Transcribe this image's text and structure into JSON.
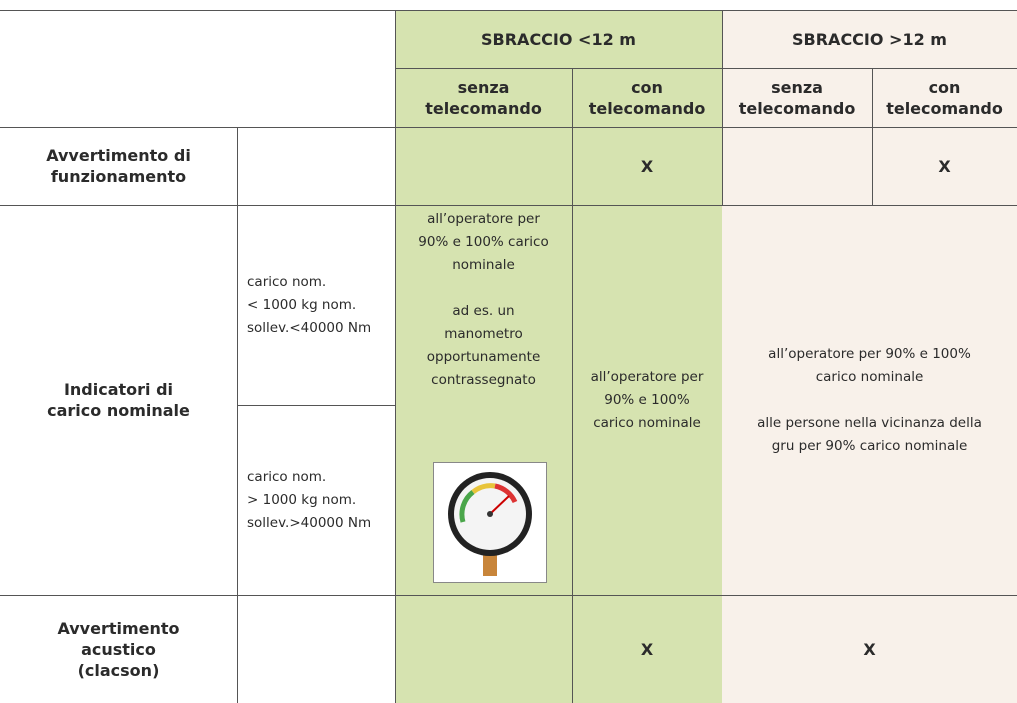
{
  "header": {
    "groups": [
      "SBRACCIO <12 m",
      "SBRACCIO >12 m"
    ],
    "subheaders": [
      "senza\ntelecomando",
      "con\ntelecomando",
      "senza\ntelecomando",
      "con\ntelecomando"
    ]
  },
  "rows": [
    {
      "label": "Avvertimento di\nfunzionamento",
      "con_lt12": "X",
      "con_gt12": "X"
    },
    {
      "label": "Indicatori di\ncarico nominale",
      "conditions": [
        "carico nom.\n< 1000 kg nom.\nsollev.<40000 Nm",
        "carico nom.\n> 1000 kg nom.\nsollev.>40000 Nm"
      ],
      "senza_lt12": "all’operatore per\n90% e 100% carico\nnominale\n\nad es. un\nmanometro\nopportunamente\ncontrassegnato",
      "con_lt12": "all’operatore per\n90% e 100%\ncarico nominale",
      "gt12": "all’operatore per 90% e 100%\ncarico nominale\n\nalle persone nella vicinanza della\ngru per 90% carico nominale"
    },
    {
      "label": "Avvertimento\nacustico\n(clacson)",
      "con_lt12": "X",
      "gt12": "X"
    }
  ]
}
